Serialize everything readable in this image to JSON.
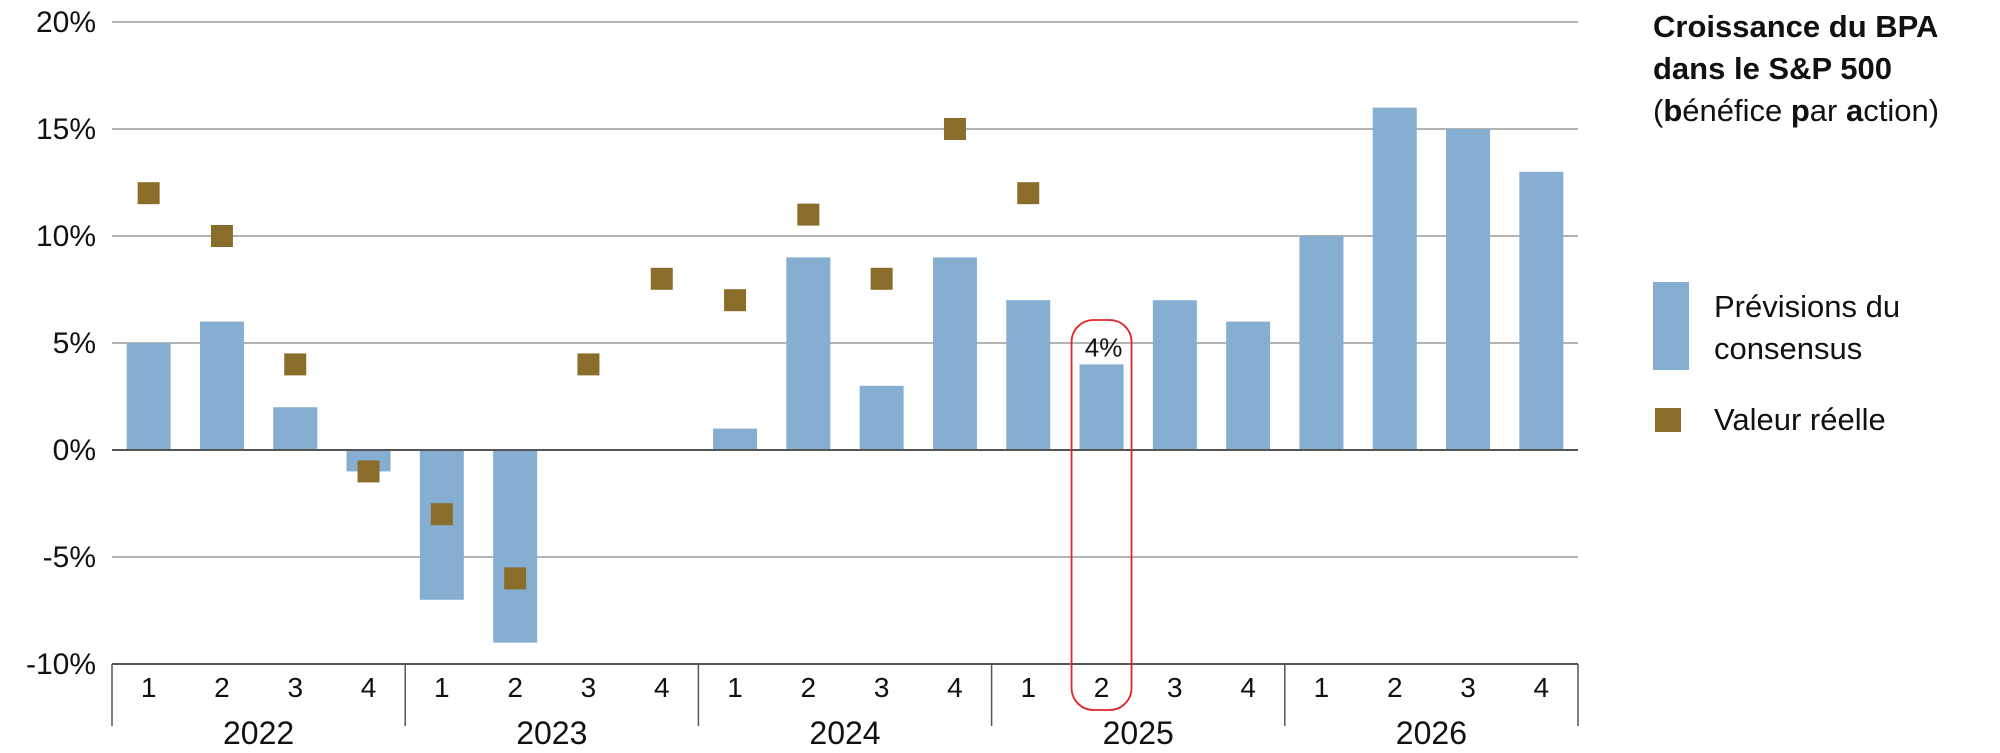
{
  "colors": {
    "bar": "#86aed1",
    "marker": "#8a6d2b",
    "grid": "#9a9a9a",
    "axis": "#555555",
    "highlight": "#e0262b"
  },
  "title": {
    "line1": "Croissance du BPA",
    "line2": "dans le S&P 500",
    "line3": "(bénéfice par action)"
  },
  "legend": {
    "bar_label": "Prévisions du consensus",
    "marker_label": "Valeur réelle"
  },
  "chart_data": {
    "type": "bar",
    "ylim": [
      -10,
      20
    ],
    "yticks": [
      {
        "value": 20,
        "label": "20%"
      },
      {
        "value": 15,
        "label": "15%"
      },
      {
        "value": 10,
        "label": "10%"
      },
      {
        "value": 5,
        "label": "5%"
      },
      {
        "value": 0,
        "label": "0%"
      },
      {
        "value": -5,
        "label": "-5%"
      },
      {
        "value": -10,
        "label": "-10%"
      }
    ],
    "grid": true,
    "legend_position": "right",
    "years": [
      "2022",
      "2023",
      "2024",
      "2025",
      "2026"
    ],
    "categories": [
      "1",
      "2",
      "3",
      "4",
      "1",
      "2",
      "3",
      "4",
      "1",
      "2",
      "3",
      "4",
      "1",
      "2",
      "3",
      "4",
      "1",
      "2",
      "3",
      "4"
    ],
    "series": [
      {
        "name": "Prévisions du consensus",
        "type": "bar",
        "values": [
          5,
          6,
          2,
          -1,
          -7,
          -9,
          null,
          null,
          1,
          9,
          3,
          9,
          7,
          4,
          7,
          6,
          10,
          16,
          15,
          13
        ]
      },
      {
        "name": "Valeur réelle",
        "type": "scatter",
        "values": [
          12,
          10,
          4,
          -1,
          -3,
          -6,
          4,
          8,
          7,
          11,
          8,
          15,
          12,
          null,
          null,
          null,
          null,
          null,
          null,
          null
        ]
      }
    ],
    "annotations": [
      {
        "category_index": 13,
        "label": "4%",
        "highlight": true
      }
    ]
  }
}
